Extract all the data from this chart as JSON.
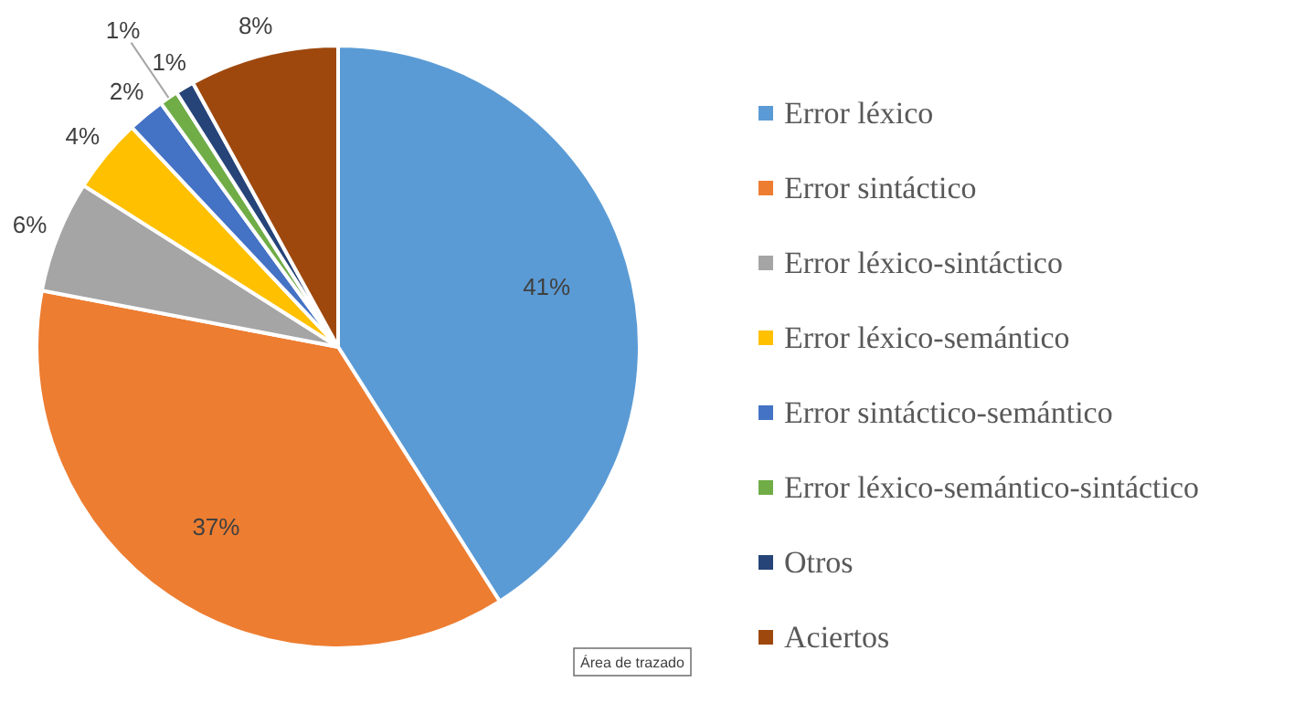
{
  "chart_data": {
    "type": "pie",
    "categories": [
      "Error léxico",
      "Error sintáctico",
      "Error léxico-sintáctico",
      "Error léxico-semántico",
      "Error sintáctico-semántico",
      "Error léxico-semántico-sintáctico",
      "Otros",
      "Aciertos"
    ],
    "values": [
      41,
      37,
      6,
      4,
      2,
      1,
      1,
      8
    ],
    "colors": [
      "#5b9bd5",
      "#ed7d31",
      "#a5a5a5",
      "#ffc000",
      "#4472c4",
      "#70ad47",
      "#264478",
      "#9e480e"
    ],
    "value_labels": [
      "41%",
      "37%",
      "6%",
      "4%",
      "2%",
      "1%",
      "1%",
      "8%"
    ],
    "legend": "right",
    "annotations": [
      "Área de trazado"
    ]
  }
}
